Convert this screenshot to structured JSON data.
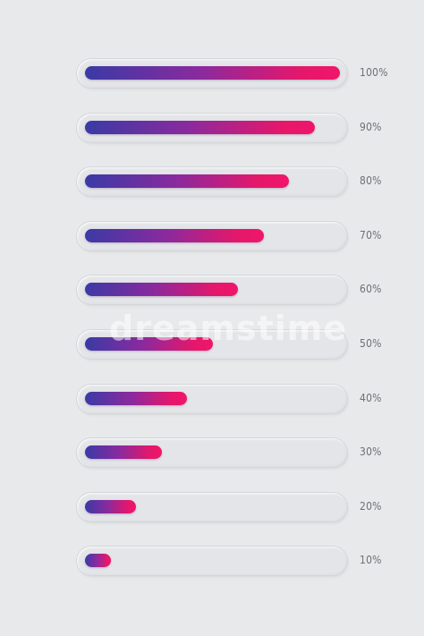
{
  "progress_bars": [
    {
      "label": "100%",
      "value": 1.0
    },
    {
      "label": "90%",
      "value": 0.9
    },
    {
      "label": "80%",
      "value": 0.8
    },
    {
      "label": "70%",
      "value": 0.7
    },
    {
      "label": "60%",
      "value": 0.6
    },
    {
      "label": "50%",
      "value": 0.5
    },
    {
      "label": "40%",
      "value": 0.4
    },
    {
      "label": "30%",
      "value": 0.3
    },
    {
      "label": "20%",
      "value": 0.2
    },
    {
      "label": "10%",
      "value": 0.1
    }
  ],
  "colors": {
    "background": "#e8e9eb",
    "track": "#e4e5e8",
    "gradient_start": "#3a3aa6",
    "gradient_end": "#f0166a",
    "label": "#6f7075"
  },
  "watermark": "dreamstime"
}
